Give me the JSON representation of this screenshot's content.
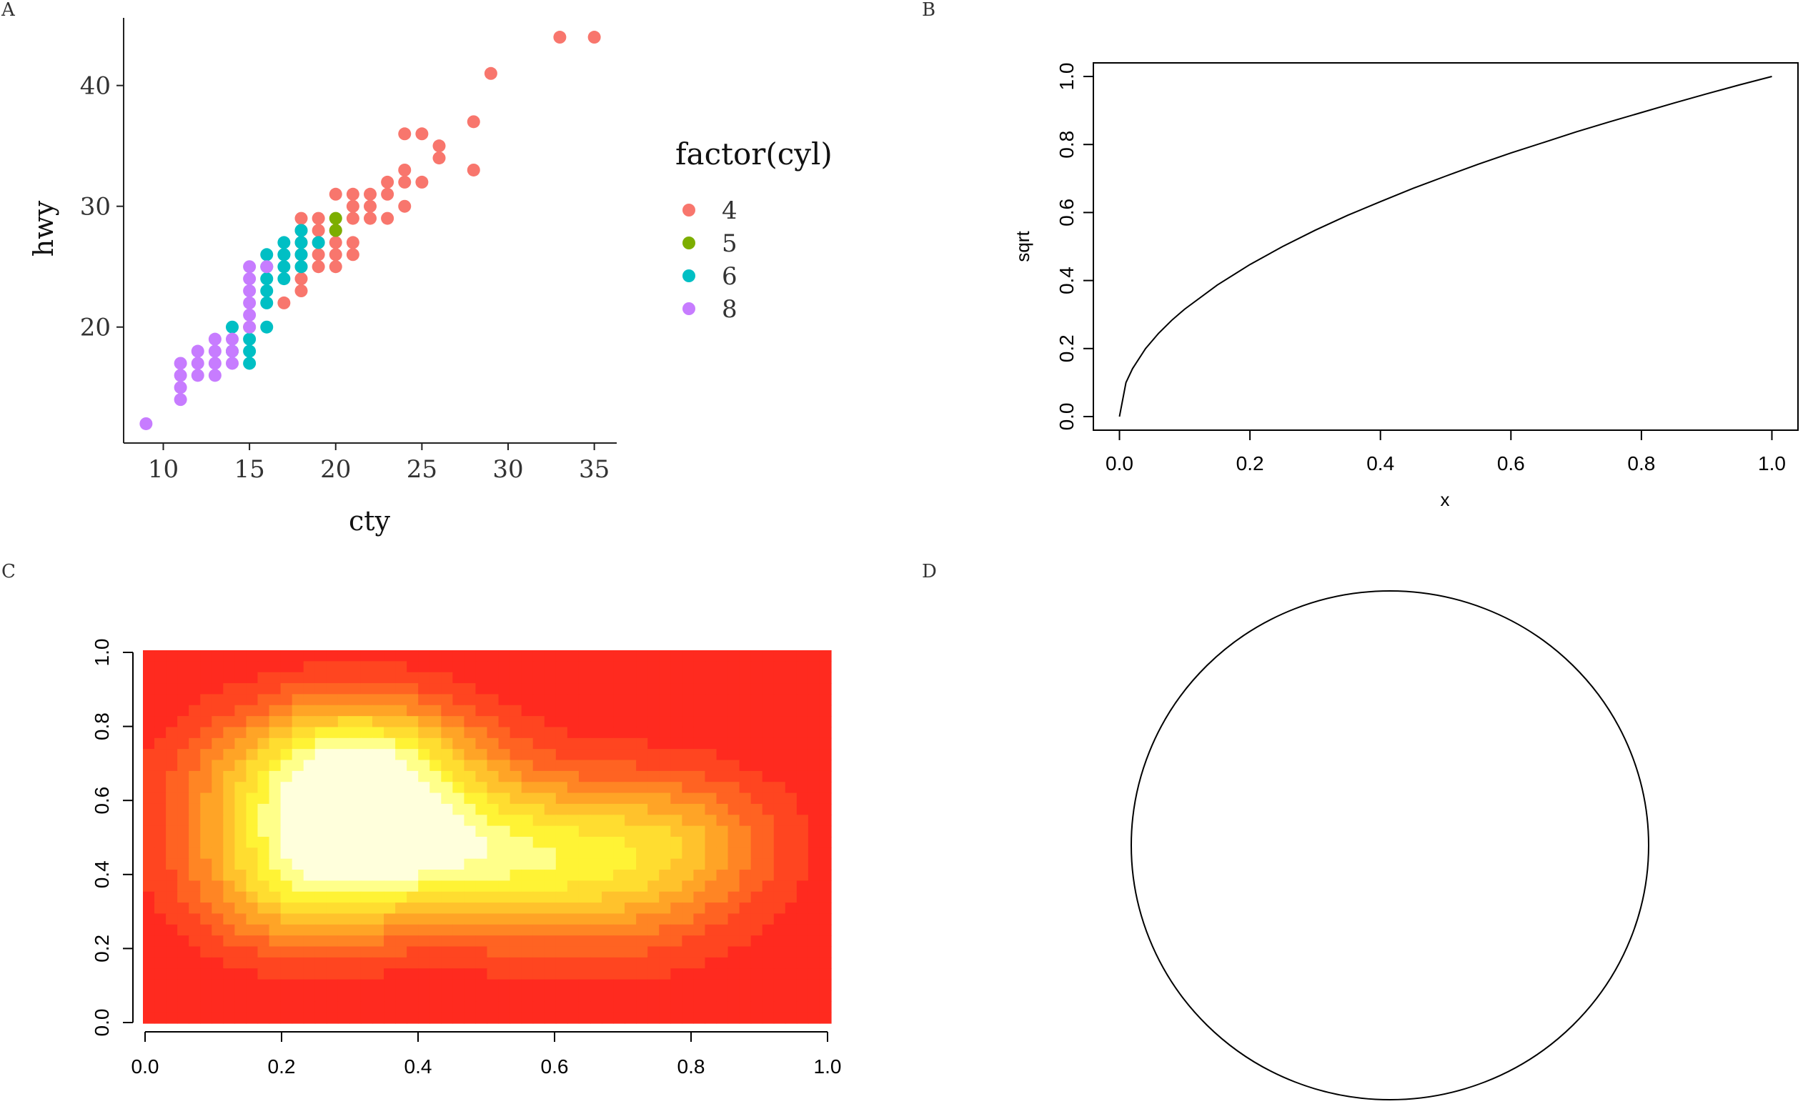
{
  "panels": {
    "A": {
      "tag": "A"
    },
    "B": {
      "tag": "B"
    },
    "C": {
      "tag": "C"
    },
    "D": {
      "tag": "D"
    }
  },
  "chart_data": [
    {
      "panel": "A",
      "type": "scatter",
      "title": "",
      "xlabel": "cty",
      "ylabel": "hwy",
      "xlim": [
        7.7,
        36.3
      ],
      "ylim": [
        10.4,
        45.6
      ],
      "xticks": [
        10,
        15,
        20,
        25,
        30,
        35
      ],
      "yticks": [
        20,
        30,
        40
      ],
      "grid": false,
      "legend": {
        "title": "factor(cyl)",
        "position": "right"
      },
      "series": [
        {
          "name": "4",
          "color": "#F8766D",
          "points": [
            [
              33,
              44
            ],
            [
              35,
              44
            ],
            [
              29,
              41
            ],
            [
              28,
              37
            ],
            [
              24,
              36
            ],
            [
              25,
              36
            ],
            [
              26,
              35
            ],
            [
              26,
              34
            ],
            [
              24,
              33
            ],
            [
              28,
              33
            ],
            [
              23,
              32
            ],
            [
              25,
              32
            ],
            [
              24,
              32
            ],
            [
              20,
              31
            ],
            [
              21,
              31
            ],
            [
              22,
              31
            ],
            [
              23,
              31
            ],
            [
              21,
              30
            ],
            [
              22,
              30
            ],
            [
              24,
              30
            ],
            [
              19,
              29
            ],
            [
              18,
              29
            ],
            [
              21,
              29
            ],
            [
              22,
              29
            ],
            [
              23,
              29
            ],
            [
              18,
              28
            ],
            [
              20,
              28
            ],
            [
              19,
              28
            ],
            [
              18,
              27
            ],
            [
              19,
              27
            ],
            [
              20,
              27
            ],
            [
              21,
              27
            ],
            [
              18,
              26
            ],
            [
              19,
              26
            ],
            [
              20,
              26
            ],
            [
              21,
              26
            ],
            [
              18,
              25
            ],
            [
              19,
              25
            ],
            [
              20,
              25
            ],
            [
              18,
              24
            ],
            [
              18,
              23
            ],
            [
              17,
              22
            ],
            [
              15,
              20
            ]
          ]
        },
        {
          "name": "5",
          "color": "#7CAE00",
          "points": [
            [
              20,
              29
            ],
            [
              20,
              28
            ]
          ]
        },
        {
          "name": "6",
          "color": "#00BFC4",
          "points": [
            [
              16,
              26
            ],
            [
              17,
              27
            ],
            [
              18,
              28
            ],
            [
              19,
              27
            ],
            [
              18,
              26
            ],
            [
              17,
              26
            ],
            [
              16,
              25
            ],
            [
              17,
              25
            ],
            [
              16,
              24
            ],
            [
              17,
              24
            ],
            [
              18,
              25
            ],
            [
              18,
              27
            ],
            [
              16,
              23
            ],
            [
              16,
              22
            ],
            [
              14,
              20
            ],
            [
              16,
              20
            ],
            [
              15,
              19
            ],
            [
              15,
              18
            ],
            [
              14,
              18
            ],
            [
              15,
              17
            ],
            [
              17,
              26
            ]
          ]
        },
        {
          "name": "8",
          "color": "#C77CFF",
          "points": [
            [
              9,
              12
            ],
            [
              11,
              14
            ],
            [
              11,
              15
            ],
            [
              11,
              16
            ],
            [
              11,
              17
            ],
            [
              12,
              16
            ],
            [
              12,
              17
            ],
            [
              12,
              18
            ],
            [
              13,
              16
            ],
            [
              13,
              17
            ],
            [
              13,
              18
            ],
            [
              13,
              19
            ],
            [
              14,
              17
            ],
            [
              14,
              18
            ],
            [
              14,
              19
            ],
            [
              15,
              20
            ],
            [
              15,
              21
            ],
            [
              15,
              22
            ],
            [
              15,
              23
            ],
            [
              15,
              24
            ],
            [
              15,
              25
            ],
            [
              16,
              25
            ]
          ]
        }
      ]
    },
    {
      "panel": "B",
      "type": "line",
      "title": "",
      "xlabel": "x",
      "ylabel": "sqrt",
      "xlim": [
        -0.04,
        1.04
      ],
      "ylim": [
        -0.04,
        1.04
      ],
      "xticks": [
        "0.0",
        "0.2",
        "0.4",
        "0.6",
        "0.8",
        "1.0"
      ],
      "yticks": [
        "0.0",
        "0.2",
        "0.4",
        "0.6",
        "0.8",
        "1.0"
      ],
      "function": "sqrt(x)",
      "x": [
        0,
        0.01,
        0.02,
        0.04,
        0.06,
        0.08,
        0.1,
        0.15,
        0.2,
        0.25,
        0.3,
        0.35,
        0.4,
        0.45,
        0.5,
        0.55,
        0.6,
        0.65,
        0.7,
        0.75,
        0.8,
        0.85,
        0.9,
        0.95,
        1.0
      ],
      "y": [
        0,
        0.1,
        0.141,
        0.2,
        0.245,
        0.283,
        0.316,
        0.387,
        0.447,
        0.5,
        0.548,
        0.592,
        0.632,
        0.671,
        0.707,
        0.742,
        0.775,
        0.806,
        0.837,
        0.866,
        0.894,
        0.922,
        0.949,
        0.975,
        1.0
      ],
      "grid": false
    },
    {
      "panel": "C",
      "type": "heatmap",
      "title": "",
      "xlabel": "",
      "ylabel": "",
      "xlim": [
        0,
        1
      ],
      "ylim": [
        0,
        1
      ],
      "xticks": [
        "0.0",
        "0.2",
        "0.4",
        "0.6",
        "0.8",
        "1.0"
      ],
      "yticks": [
        "0.0",
        "0.2",
        "0.4",
        "0.6",
        "0.8",
        "1.0"
      ],
      "colormap": "heat",
      "color_levels": [
        "#FF2A1F",
        "#FF4520",
        "#FF6322",
        "#FF8524",
        "#FFA426",
        "#FFC22C",
        "#FFDD30",
        "#FFF335",
        "#FFFF8A",
        "#FFFFDC"
      ],
      "grid": false
    },
    {
      "panel": "D",
      "type": "other",
      "title": "",
      "shape": "circle"
    }
  ]
}
